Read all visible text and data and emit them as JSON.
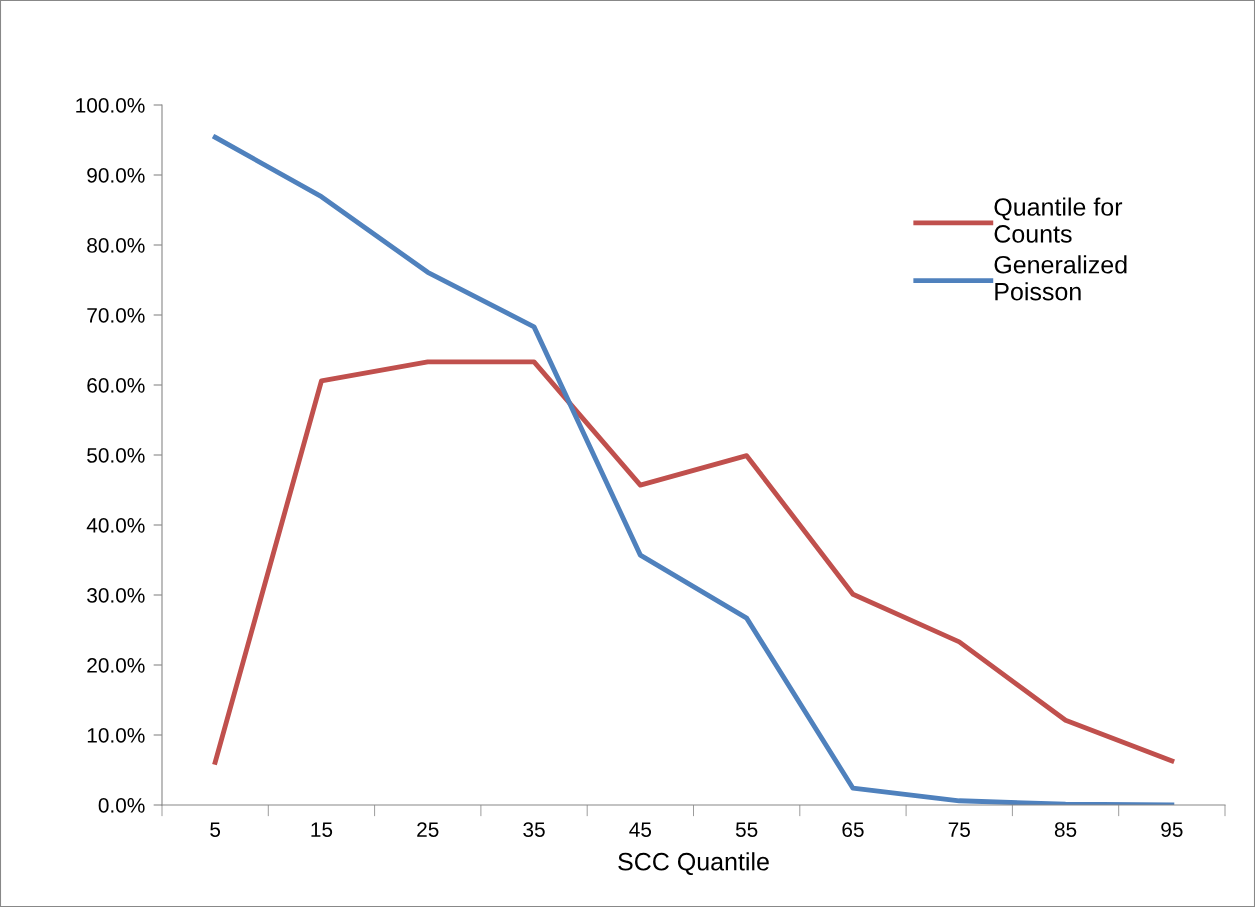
{
  "chart_data": {
    "type": "line",
    "xlabel": "SCC Quantile",
    "categories": [
      "5",
      "15",
      "25",
      "35",
      "45",
      "55",
      "65",
      "75",
      "85",
      "95"
    ],
    "series": [
      {
        "name": "Quantile for\nCounts",
        "color": "#c0504d",
        "values": [
          6.1,
          60.6,
          63.3,
          63.3,
          45.7,
          49.9,
          30.1,
          23.3,
          12.1,
          6.3
        ]
      },
      {
        "name": "Generalized\nPoisson",
        "color": "#4f81bd",
        "values": [
          95.4,
          86.9,
          76.1,
          68.3,
          35.7,
          26.7,
          2.4,
          0.6,
          0.1,
          0.0
        ]
      }
    ],
    "ylim": [
      0,
      100
    ],
    "yticks": [
      {
        "value": 0,
        "label": "0.0%"
      },
      {
        "value": 10,
        "label": "10.0%"
      },
      {
        "value": 20,
        "label": "20.0%"
      },
      {
        "value": 30,
        "label": "30.0%"
      },
      {
        "value": 40,
        "label": "40.0%"
      },
      {
        "value": 50,
        "label": "50.0%"
      },
      {
        "value": 60,
        "label": "60.0%"
      },
      {
        "value": 70,
        "label": "70.0%"
      },
      {
        "value": 80,
        "label": "80.0%"
      },
      {
        "value": 90,
        "label": "90.0%"
      },
      {
        "value": 100,
        "label": "100.0%"
      }
    ],
    "grid": false,
    "legend": "top right",
    "marker": "none",
    "line_style": "solid"
  }
}
